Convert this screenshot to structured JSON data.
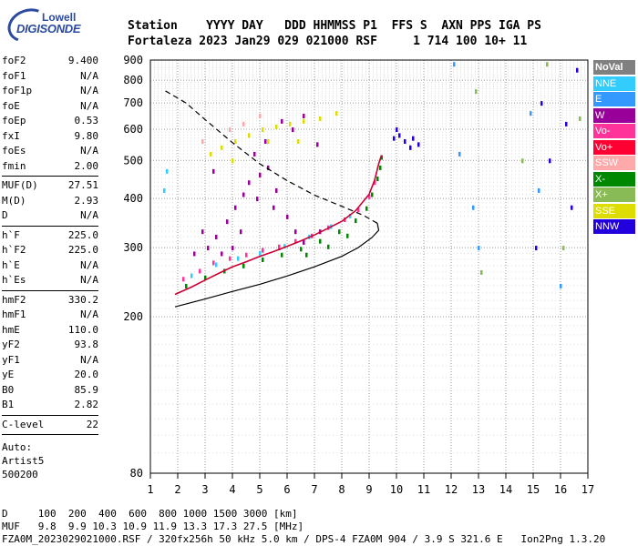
{
  "logo": {
    "line1": "Lowell",
    "line2": "DIGISONDE"
  },
  "header": {
    "labels_line": "Station    YYYY DAY   DDD HHMMSS P1  FFS S  AXN PPS IGA PS",
    "values_line": "Fortaleza 2023 Jan29 029 021000 RSF     1 714 100 10+ 11"
  },
  "params": [
    {
      "group": 1,
      "name": "foF2",
      "value": "9.400"
    },
    {
      "group": 1,
      "name": "foF1",
      "value": "N/A"
    },
    {
      "group": 1,
      "name": "foF1p",
      "value": "N/A"
    },
    {
      "group": 1,
      "name": "foE",
      "value": "N/A"
    },
    {
      "group": 1,
      "name": "foEp",
      "value": "0.53"
    },
    {
      "group": 1,
      "name": "fxI",
      "value": "9.80"
    },
    {
      "group": 1,
      "name": "foEs",
      "value": "N/A"
    },
    {
      "group": 1,
      "name": "fmin",
      "value": "2.00"
    },
    {
      "group": 2,
      "name": "MUF(D)",
      "value": "27.51"
    },
    {
      "group": 2,
      "name": "M(D)",
      "value": "2.93"
    },
    {
      "group": 2,
      "name": "D",
      "value": "N/A"
    },
    {
      "group": 3,
      "name": "h`F",
      "value": "225.0"
    },
    {
      "group": 3,
      "name": "h`F2",
      "value": "225.0"
    },
    {
      "group": 3,
      "name": "h`E",
      "value": "N/A"
    },
    {
      "group": 3,
      "name": "h`Es",
      "value": "N/A"
    },
    {
      "group": 4,
      "name": "hmF2",
      "value": "330.2"
    },
    {
      "group": 4,
      "name": "hmF1",
      "value": "N/A"
    },
    {
      "group": 4,
      "name": "hmE",
      "value": "110.0"
    },
    {
      "group": 4,
      "name": "yF2",
      "value": "93.8"
    },
    {
      "group": 4,
      "name": "yF1",
      "value": "N/A"
    },
    {
      "group": 4,
      "name": "yE",
      "value": "20.0"
    },
    {
      "group": 4,
      "name": "B0",
      "value": "85.9"
    },
    {
      "group": 4,
      "name": "B1",
      "value": "2.82"
    },
    {
      "group": 5,
      "name": "C-level",
      "value": "22"
    }
  ],
  "extra": {
    "auto": "Auto:",
    "artist": "Artist5",
    "code": "500200"
  },
  "legend": [
    {
      "label": "NoVal",
      "color": "#808080",
      "text_color": "#ffffff",
      "bold": true
    },
    {
      "label": "NNE",
      "color": "#33ccff",
      "text_color": "#ffffff"
    },
    {
      "label": "E",
      "color": "#3399ff",
      "text_color": "#ffffff"
    },
    {
      "label": "W",
      "color": "#990099",
      "text_color": "#ffffff"
    },
    {
      "label": "Vo-",
      "color": "#ff3399",
      "text_color": "#ffffff"
    },
    {
      "label": "Vo+",
      "color": "#ff0033",
      "text_color": "#ffffff"
    },
    {
      "label": "SSW",
      "color": "#ffaaaa",
      "text_color": "#ffffff"
    },
    {
      "label": "X-",
      "color": "#008800",
      "text_color": "#ffffff"
    },
    {
      "label": "X+",
      "color": "#88bb55",
      "text_color": "#ffffff"
    },
    {
      "label": "SSE",
      "color": "#dddd00",
      "text_color": "#ffffff"
    },
    {
      "label": "NNW",
      "color": "#2200dd",
      "text_color": "#ffffff"
    }
  ],
  "footer": {
    "d_line": "D     100  200  400  600  800 1000 1500 3000 [km]",
    "muf_line": "MUF   9.8  9.9 10.3 10.9 11.9 13.3 17.3 27.5 [MHz]",
    "file_line": "FZA0M_2023029021000.RSF / 320fx256h 50 kHz 5.0 km / DPS-4 FZA0M 904 / 3.9 S 321.6 E   Ion2Png 1.3.20"
  },
  "chart_data": {
    "type": "scatter",
    "xlim": [
      1,
      17
    ],
    "ylim": [
      80,
      900
    ],
    "x_ticks": [
      "1",
      "2",
      "3",
      "4",
      "5",
      "6",
      "7",
      "8",
      "9",
      "10",
      "11",
      "12",
      "13",
      "14",
      "15",
      "16",
      "17"
    ],
    "y_ticks": [
      {
        "v": 80,
        "label": "80"
      },
      {
        "v": 200,
        "label": "200"
      },
      {
        "v": 300,
        "label": "300"
      },
      {
        "v": 400,
        "label": "400"
      },
      {
        "v": 500,
        "label": "500"
      },
      {
        "v": 600,
        "label": "600"
      },
      {
        "v": 700,
        "label": "700"
      },
      {
        "v": 800,
        "label": "800"
      },
      {
        "v": 900,
        "label": "900"
      }
    ],
    "grid": true,
    "y_scale": "log",
    "trace_o": [
      [
        1.9,
        228
      ],
      [
        2.5,
        238
      ],
      [
        3,
        248
      ],
      [
        3.5,
        258
      ],
      [
        4,
        268
      ],
      [
        4.5,
        276
      ],
      [
        5,
        285
      ],
      [
        5.5,
        293
      ],
      [
        6,
        302
      ],
      [
        6.5,
        312
      ],
      [
        7,
        323
      ],
      [
        7.5,
        336
      ],
      [
        8,
        350
      ],
      [
        8.5,
        372
      ],
      [
        9,
        410
      ],
      [
        9.2,
        445
      ],
      [
        9.35,
        490
      ],
      [
        9.45,
        515
      ]
    ],
    "true_height": [
      [
        1.9,
        212
      ],
      [
        3,
        222
      ],
      [
        4,
        232
      ],
      [
        5,
        242
      ],
      [
        6,
        254
      ],
      [
        7,
        268
      ],
      [
        8,
        285
      ],
      [
        8.6,
        300
      ],
      [
        9.1,
        318
      ],
      [
        9.35,
        332
      ],
      [
        9.3,
        346
      ],
      [
        8.8,
        362
      ],
      [
        8,
        382
      ],
      [
        7,
        408
      ],
      [
        6,
        444
      ],
      [
        5,
        490
      ],
      [
        4,
        555
      ],
      [
        3,
        635
      ],
      [
        2.3,
        700
      ],
      [
        1.5,
        755
      ]
    ],
    "scatter_series": [
      {
        "name": "W",
        "color": "#990099",
        "points": [
          [
            2.6,
            290
          ],
          [
            3.1,
            300
          ],
          [
            3.4,
            320
          ],
          [
            3.8,
            350
          ],
          [
            4.1,
            380
          ],
          [
            4.4,
            410
          ],
          [
            4.6,
            440
          ],
          [
            5.0,
            460
          ],
          [
            5.3,
            480
          ],
          [
            5.6,
            420
          ],
          [
            6.0,
            360
          ],
          [
            6.3,
            330
          ],
          [
            4.8,
            520
          ],
          [
            5.2,
            560
          ],
          [
            3.3,
            470
          ],
          [
            2.9,
            330
          ],
          [
            4.3,
            330
          ],
          [
            5.7,
            300
          ],
          [
            6.6,
            310
          ],
          [
            7.2,
            330
          ],
          [
            5.5,
            380
          ],
          [
            4.9,
            400
          ],
          [
            4.0,
            300
          ],
          [
            3.6,
            290
          ],
          [
            6.2,
            600
          ],
          [
            6.6,
            650
          ],
          [
            7.1,
            550
          ],
          [
            5.8,
            630
          ]
        ]
      },
      {
        "name": "Vo-",
        "color": "#ff3399",
        "points": [
          [
            2.2,
            250
          ],
          [
            2.8,
            262
          ],
          [
            3.3,
            275
          ],
          [
            3.9,
            282
          ],
          [
            4.5,
            288
          ],
          [
            5.1,
            296
          ],
          [
            5.7,
            302
          ],
          [
            6.3,
            312
          ],
          [
            6.9,
            322
          ],
          [
            7.5,
            338
          ],
          [
            8.1,
            354
          ],
          [
            8.6,
            375
          ],
          [
            9.0,
            405
          ],
          [
            9.2,
            440
          ]
        ]
      },
      {
        "name": "X-",
        "color": "#008800",
        "points": [
          [
            2.3,
            240
          ],
          [
            3.0,
            252
          ],
          [
            3.7,
            262
          ],
          [
            4.4,
            270
          ],
          [
            5.1,
            280
          ],
          [
            5.8,
            288
          ],
          [
            6.5,
            298
          ],
          [
            7.2,
            312
          ],
          [
            7.9,
            330
          ],
          [
            8.5,
            352
          ],
          [
            8.9,
            378
          ],
          [
            9.1,
            410
          ],
          [
            9.3,
            450
          ],
          [
            9.4,
            480
          ],
          [
            9.45,
            510
          ],
          [
            6.7,
            288
          ],
          [
            7.5,
            302
          ],
          [
            8.2,
            322
          ]
        ]
      },
      {
        "name": "NNE",
        "color": "#33ccff",
        "points": [
          [
            2.5,
            255
          ],
          [
            3.4,
            272
          ],
          [
            4.2,
            282
          ],
          [
            5.0,
            291
          ],
          [
            5.9,
            303
          ],
          [
            6.8,
            320
          ],
          [
            7.6,
            340
          ],
          [
            8.3,
            362
          ],
          [
            1.5,
            420
          ],
          [
            1.6,
            470
          ]
        ]
      },
      {
        "name": "SSE",
        "color": "#dddd00",
        "points": [
          [
            3.2,
            520
          ],
          [
            3.6,
            540
          ],
          [
            4.1,
            560
          ],
          [
            4.6,
            580
          ],
          [
            5.1,
            600
          ],
          [
            5.6,
            610
          ],
          [
            6.1,
            620
          ],
          [
            6.6,
            630
          ],
          [
            7.2,
            640
          ],
          [
            7.8,
            660
          ],
          [
            4.0,
            500
          ],
          [
            5.3,
            560
          ],
          [
            6.4,
            560
          ]
        ]
      },
      {
        "name": "NNW",
        "color": "#2200dd",
        "points": [
          [
            10.0,
            600
          ],
          [
            10.1,
            580
          ],
          [
            9.9,
            570
          ],
          [
            10.3,
            560
          ],
          [
            10.5,
            540
          ],
          [
            10.8,
            550
          ],
          [
            10.6,
            570
          ],
          [
            15.3,
            700
          ],
          [
            15.6,
            500
          ],
          [
            16.2,
            620
          ],
          [
            16.4,
            380
          ],
          [
            15.1,
            300
          ],
          [
            16.6,
            850
          ]
        ]
      },
      {
        "name": "E",
        "color": "#3399ff",
        "points": [
          [
            12.1,
            880
          ],
          [
            12.3,
            520
          ],
          [
            13.0,
            300
          ],
          [
            14.9,
            660
          ],
          [
            15.2,
            420
          ],
          [
            16.0,
            240
          ],
          [
            12.8,
            380
          ]
        ]
      },
      {
        "name": "X+",
        "color": "#88bb55",
        "points": [
          [
            12.9,
            750
          ],
          [
            13.1,
            260
          ],
          [
            15.5,
            880
          ],
          [
            16.1,
            300
          ],
          [
            14.6,
            500
          ],
          [
            16.7,
            640
          ]
        ]
      },
      {
        "name": "SSW",
        "color": "#ffaaaa",
        "points": [
          [
            3.9,
            600
          ],
          [
            4.4,
            620
          ],
          [
            5.0,
            650
          ],
          [
            2.9,
            560
          ]
        ]
      }
    ]
  }
}
